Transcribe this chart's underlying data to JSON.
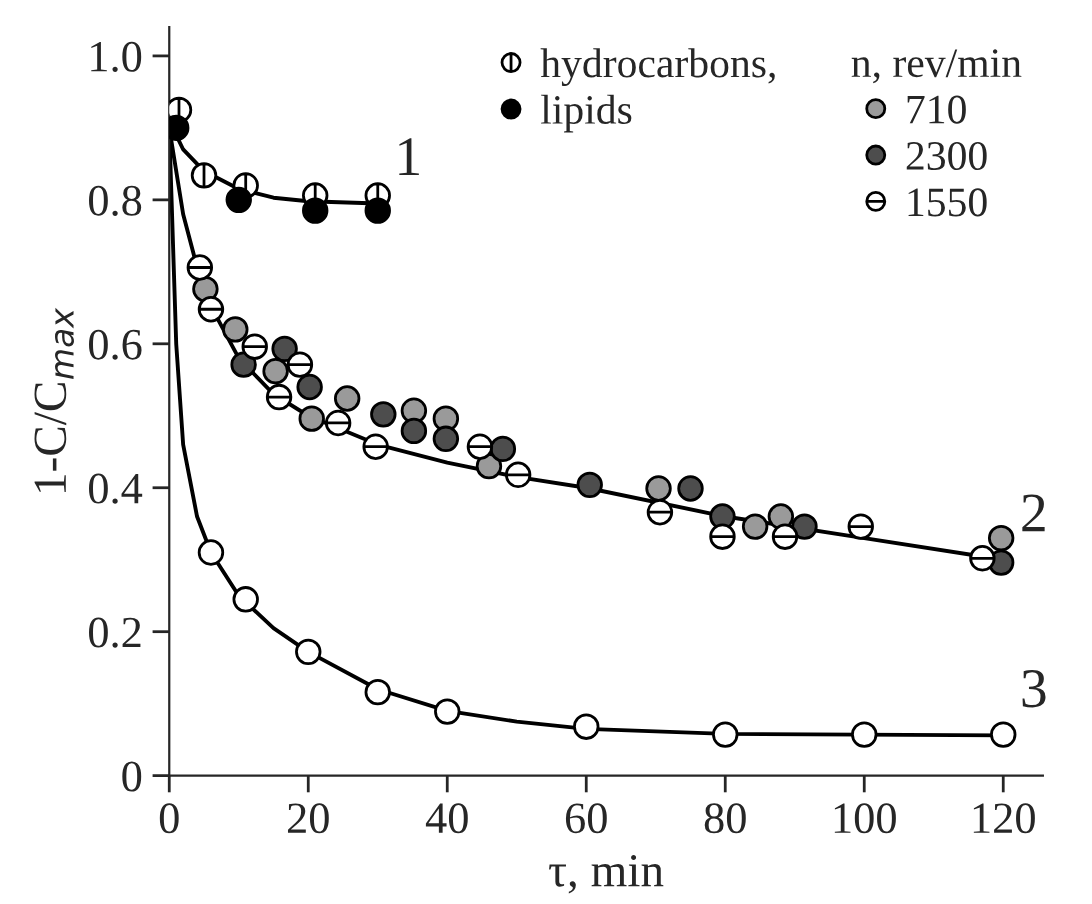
{
  "chart_data": {
    "type": "scatter",
    "xlabel": "τ, min",
    "ylabel": "1-C/C$_{max}$",
    "legend_title": "n, rev/min",
    "legend": "top right",
    "grid": false,
    "xlim": [
      0,
      125.7
    ],
    "xticks": [
      0,
      20,
      40,
      60,
      80,
      100,
      120
    ],
    "ylim": [
      0,
      1.04
    ],
    "yticks": [
      0,
      0.2,
      0.4,
      0.6,
      0.8,
      {
        "value": 1.0,
        "label": "1.0"
      }
    ],
    "annotations": [
      "1",
      "2",
      "3"
    ],
    "series": [
      {
        "type": "line",
        "color": "#000000",
        "marker": "none",
        "line_style": "solid",
        "x": [
          0,
          2,
          5,
          10,
          15,
          20,
          30
        ],
        "values": [
          0.91,
          0.87,
          0.84,
          0.815,
          0.803,
          0.798,
          0.795
        ]
      },
      {
        "type": "line",
        "color": "#000000",
        "marker": "none",
        "line_style": "solid",
        "x": [
          0,
          2,
          5,
          10,
          15,
          20,
          30,
          40,
          50,
          60,
          80,
          100,
          120
        ],
        "values": [
          0.9,
          0.78,
          0.67,
          0.58,
          0.53,
          0.5,
          0.46,
          0.435,
          0.415,
          0.4,
          0.36,
          0.33,
          0.3
        ]
      },
      {
        "type": "line",
        "color": "#000000",
        "marker": "none",
        "line_style": "solid",
        "x": [
          0,
          1,
          2,
          4,
          6,
          10,
          15,
          20,
          30,
          40,
          50,
          60,
          80,
          120
        ],
        "values": [
          0.9,
          0.6,
          0.46,
          0.36,
          0.31,
          0.25,
          0.205,
          0.172,
          0.12,
          0.09,
          0.075,
          0.065,
          0.058,
          0.056
        ]
      },
      {
        "name": "hydrocarbons,",
        "color": "#ffffff",
        "marker": "cross",
        "x": [
          1.4,
          5,
          11,
          21,
          30
        ],
        "values": [
          0.925,
          0.834,
          0.82,
          0.806,
          0.806
        ]
      },
      {
        "name": "lipids",
        "color": "#000000",
        "marker": "circle",
        "x": [
          1,
          10,
          21,
          30
        ],
        "values": [
          0.9,
          0.8,
          0.785,
          0.785
        ]
      },
      {
        "name": "710",
        "color": "#9a9a9a",
        "marker": "circle",
        "x": [
          5.2,
          9.5,
          15.3,
          20.5,
          25.6,
          35.2,
          39.8,
          46,
          70.4,
          84.3,
          88,
          119.7
        ],
        "values": [
          0.676,
          0.62,
          0.562,
          0.496,
          0.524,
          0.507,
          0.496,
          0.43,
          0.399,
          0.346,
          0.36,
          0.33
        ]
      },
      {
        "name": "2300",
        "color": "#4d4d4d",
        "marker": "circle",
        "x": [
          10.7,
          16.6,
          20.2,
          30.8,
          35.2,
          39.8,
          48,
          60.5,
          75,
          79.6,
          91.4,
          119.7
        ],
        "values": [
          0.571,
          0.593,
          0.54,
          0.502,
          0.479,
          0.468,
          0.454,
          0.404,
          0.399,
          0.36,
          0.346,
          0.296
        ]
      },
      {
        "name": "1550",
        "color": "#ffffff",
        "marker": "cross",
        "x": [
          4.4,
          6,
          12.3,
          15.8,
          18.8,
          24.3,
          29.7,
          44.7,
          50.2,
          70.6,
          79.6,
          88.6,
          99.5,
          117
        ],
        "values": [
          0.706,
          0.648,
          0.596,
          0.526,
          0.571,
          0.49,
          0.457,
          0.457,
          0.418,
          0.366,
          0.332,
          0.332,
          0.346,
          0.302
        ]
      },
      {
        "color": "#ffffff",
        "marker": "circle",
        "x": [
          6,
          11,
          20,
          30,
          40,
          60,
          80,
          100,
          120
        ],
        "values": [
          0.31,
          0.245,
          0.172,
          0.116,
          0.089,
          0.068,
          0.057,
          0.057,
          0.057
        ]
      }
    ]
  }
}
